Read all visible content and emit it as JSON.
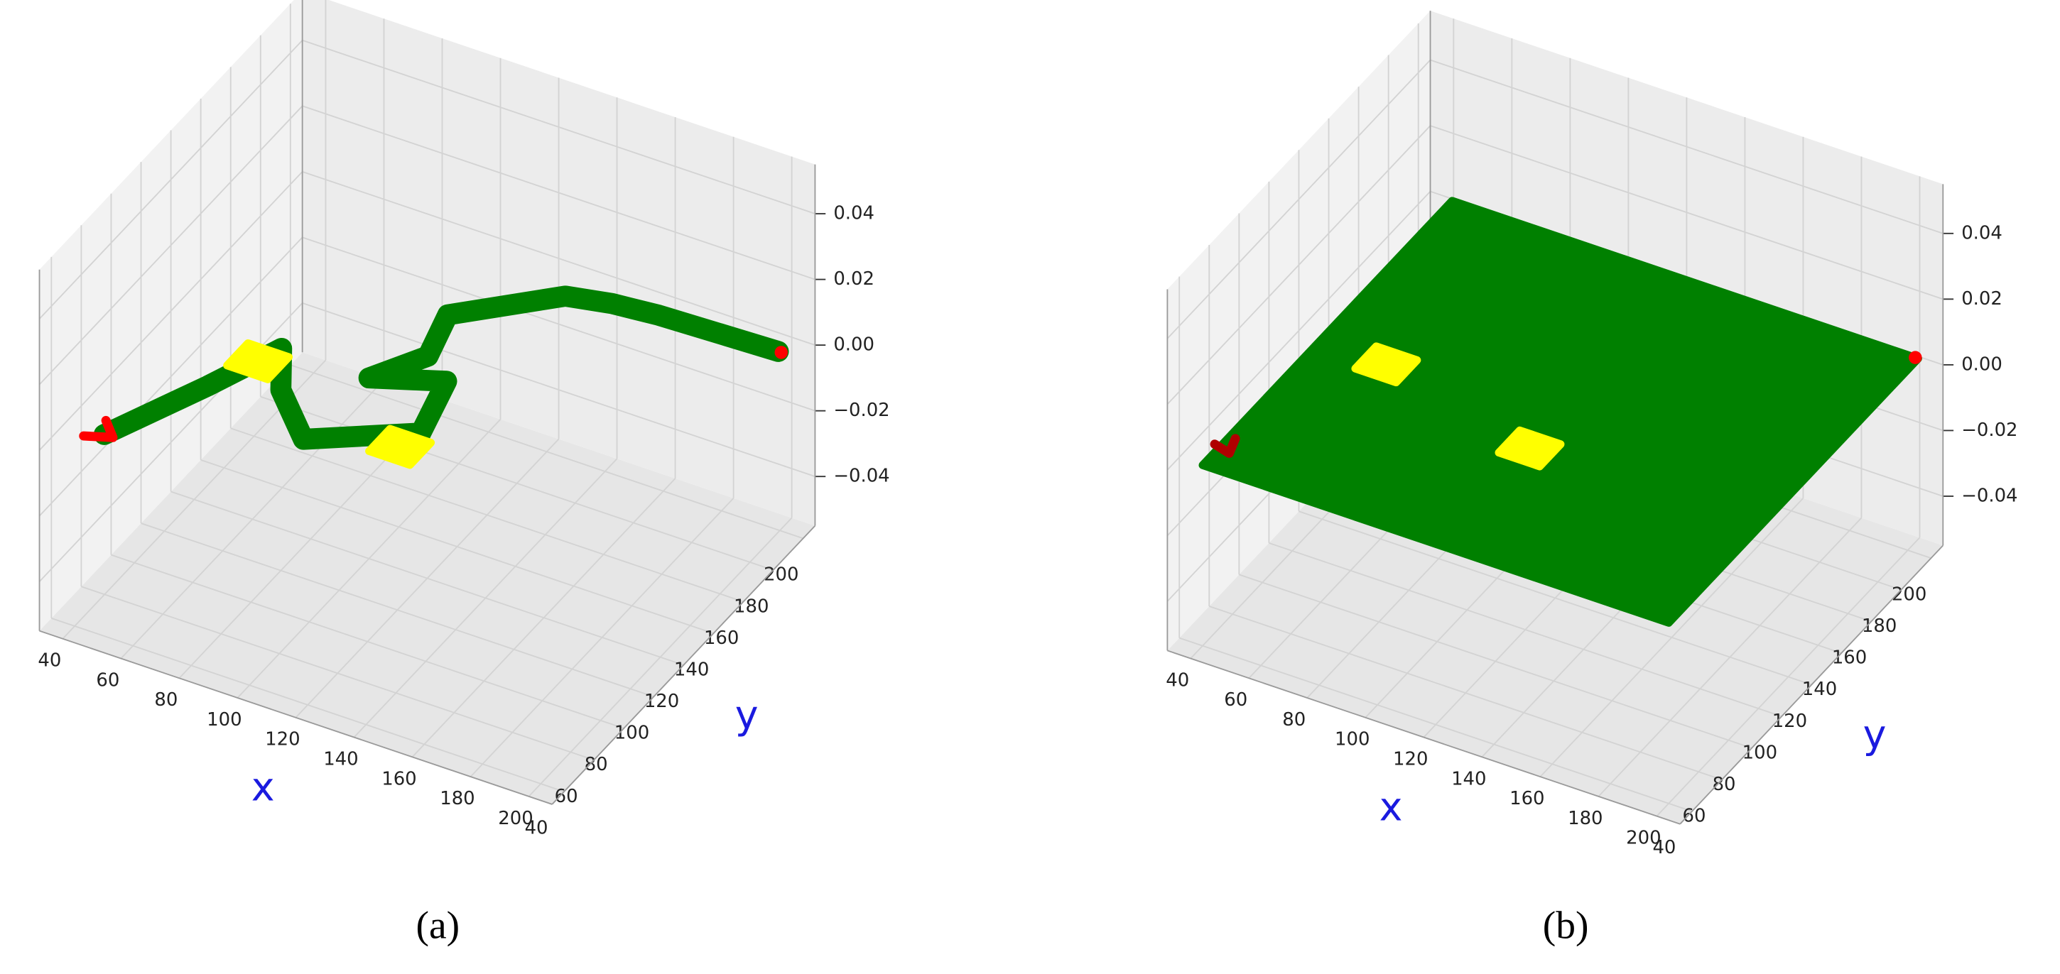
{
  "chart_data": [
    {
      "type": "scatter3d",
      "caption": "(a)",
      "xlabel": "x",
      "ylabel": "y",
      "xlim": [
        32,
        208
      ],
      "ylim": [
        32,
        208
      ],
      "zlim": [
        -0.055,
        0.055
      ],
      "xticks": [
        40,
        60,
        80,
        100,
        120,
        140,
        160,
        180,
        200
      ],
      "yticks": [
        40,
        60,
        80,
        100,
        120,
        140,
        160,
        180,
        200
      ],
      "zticks": [
        {
          "value": -0.04,
          "label": "−0.04"
        },
        {
          "value": -0.02,
          "label": "−0.02"
        },
        {
          "value": 0,
          "label": "0.00"
        },
        0.02,
        0.04
      ],
      "grid": true,
      "pane_colors": [
        "#f2f2f2",
        "#ececec",
        "#e6e6e6"
      ],
      "grid_color": "#d3d3d3",
      "series": [
        {
          "mode": "path",
          "color": "#008000",
          "x": [
            45,
            60,
            70,
            80,
            98,
            127,
            121,
            100,
            110,
            105,
            131,
            145,
            160,
            200
          ],
          "y": [
            50,
            90,
            120,
            100,
            80,
            102,
            131,
            120,
            140,
            163,
            191,
            195,
            197,
            199
          ],
          "z": [
            0,
            0,
            0,
            0,
            0,
            0,
            0,
            0,
            0,
            0,
            0,
            0,
            0,
            0
          ]
        },
        {
          "mode": "polygon",
          "color": "#ffff00",
          "x": [
            60,
            74,
            74,
            60
          ],
          "y": [
            103,
            103,
            117,
            117
          ],
          "z": [
            0,
            0,
            0,
            0
          ]
        },
        {
          "mode": "polygon",
          "color": "#ffff00",
          "x": [
            118,
            132,
            132,
            118
          ],
          "y": [
            85,
            85,
            99,
            99
          ],
          "z": [
            0,
            0,
            0,
            0
          ]
        },
        {
          "mode": "path",
          "color": "#ff0000",
          "x": [
            40,
            48,
            42
          ],
          "y": [
            46,
            50,
            57
          ],
          "z": [
            0,
            0,
            0
          ]
        },
        {
          "mode": "point",
          "color": "#ff0000",
          "x": [
            201
          ],
          "y": [
            199
          ],
          "z": [
            0
          ]
        }
      ]
    },
    {
      "type": "scatter3d",
      "caption": "(b)",
      "xlabel": "x",
      "ylabel": "y",
      "xlim": [
        32,
        208
      ],
      "ylim": [
        32,
        208
      ],
      "zlim": [
        -0.055,
        0.055
      ],
      "xticks": [
        40,
        60,
        80,
        100,
        120,
        140,
        160,
        180,
        200
      ],
      "yticks": [
        40,
        60,
        80,
        100,
        120,
        140,
        160,
        180,
        200
      ],
      "zticks": [
        {
          "value": -0.04,
          "label": "−0.04"
        },
        {
          "value": -0.02,
          "label": "−0.02"
        },
        {
          "value": 0,
          "label": "0.00"
        },
        0.02,
        0.04
      ],
      "grid": true,
      "pane_colors": [
        "#f2f2f2",
        "#ececec",
        "#e6e6e6"
      ],
      "grid_color": "#d3d3d3",
      "series": [
        {
          "mode": "polygon",
          "color": "#008000",
          "x": [
            40,
            200,
            200,
            40
          ],
          "y": [
            40,
            40,
            207,
            207
          ],
          "z": [
            0,
            0,
            0,
            0
          ]
        },
        {
          "mode": "polygon",
          "color": "#ffff00",
          "x": [
            56,
            70,
            70,
            56
          ],
          "y": [
            111,
            111,
            125,
            125
          ],
          "z": [
            0,
            0,
            0,
            0
          ]
        },
        {
          "mode": "polygon",
          "color": "#ffff00",
          "x": [
            114,
            128,
            128,
            114
          ],
          "y": [
            94,
            94,
            108,
            108
          ],
          "z": [
            0,
            0,
            0,
            0
          ]
        },
        {
          "mode": "path",
          "color": "#b00000",
          "x": [
            38,
            44,
            42
          ],
          "y": [
            52,
            50,
            58
          ],
          "z": [
            0,
            0,
            0
          ]
        },
        {
          "mode": "point",
          "color": "#ff0000",
          "x": [
            199
          ],
          "y": [
            207
          ],
          "z": [
            0
          ]
        }
      ]
    }
  ]
}
